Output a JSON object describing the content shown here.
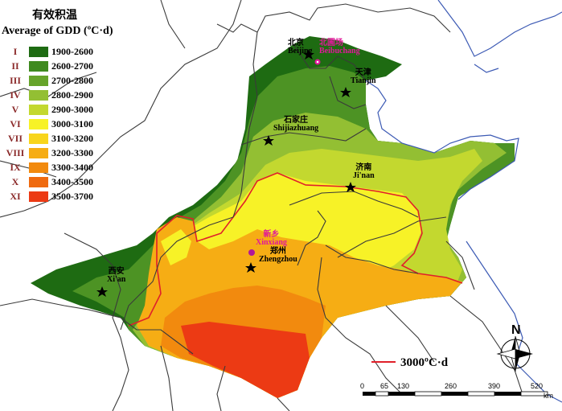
{
  "legend": {
    "title": "有效积温",
    "subtitle": "Average of GDD (ºC·d)",
    "classes": [
      {
        "roman": "I",
        "range": "1900-2600",
        "color": "#1e6b12"
      },
      {
        "roman": "II",
        "range": "2600-2700",
        "color": "#3f8a1f"
      },
      {
        "roman": "III",
        "range": "2700-2800",
        "color": "#66a42a"
      },
      {
        "roman": "IV",
        "range": "2800-2900",
        "color": "#93bf33"
      },
      {
        "roman": "V",
        "range": "2900-3000",
        "color": "#c3d82f"
      },
      {
        "roman": "VI",
        "range": "3000-3100",
        "color": "#f7f227"
      },
      {
        "roman": "VII",
        "range": "3100-3200",
        "color": "#f8d51c"
      },
      {
        "roman": "VIII",
        "range": "3200-3300",
        "color": "#f6ad14"
      },
      {
        "roman": "IX",
        "range": "3300-3400",
        "color": "#f28a0e"
      },
      {
        "roman": "X",
        "range": "3400-3500",
        "color": "#ef6a0f"
      },
      {
        "roman": "XI",
        "range": "3500-3700",
        "color": "#ec3a14"
      }
    ]
  },
  "cities": {
    "beijing": {
      "cn": "北京",
      "en": "Beijing"
    },
    "beibuchang": {
      "cn": "北圃场",
      "en": "Beibuchang"
    },
    "tianjin": {
      "cn": "天津",
      "en": "Tianjin"
    },
    "shijiazhuang": {
      "cn": "石家庄",
      "en": "Shijiazhuang"
    },
    "jinan": {
      "cn": "济南",
      "en": "Ji'nan"
    },
    "xinxiang": {
      "cn": "新乡",
      "en": "Xinxiang"
    },
    "zhengzhou": {
      "cn": "郑州",
      "en": "Zhengzhou"
    },
    "xian": {
      "cn": "西安",
      "en": "Xi'an"
    }
  },
  "contour_legend": {
    "label": "3000ºC·d",
    "color": "#e0202a"
  },
  "scale_bar": {
    "ticks": [
      "0",
      "65",
      "130",
      "260",
      "390",
      "520"
    ],
    "unit": "km"
  },
  "north_arrow": {
    "letter": "N"
  },
  "colors": {
    "sea_coast": "#3c5ab4",
    "boundary": "#3a3a3a"
  }
}
